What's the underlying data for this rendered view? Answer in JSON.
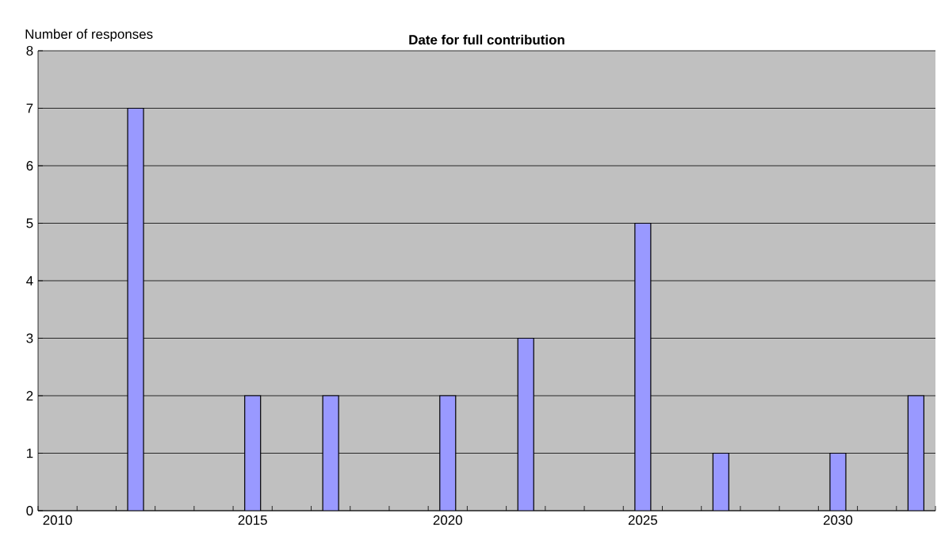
{
  "chart_data": {
    "type": "bar",
    "title": "Date for full contribution",
    "ylabel": "Number of responses",
    "categories": [
      "2010",
      null,
      null,
      null,
      null,
      "2015",
      null,
      null,
      null,
      null,
      "2020",
      null,
      null,
      null,
      null,
      "2025",
      null,
      null,
      null,
      null,
      "2030",
      null,
      null
    ],
    "values": [
      null,
      null,
      7,
      null,
      null,
      2,
      null,
      2,
      null,
      null,
      2,
      null,
      3,
      null,
      null,
      5,
      null,
      1,
      null,
      null,
      1,
      null,
      2
    ],
    "color": "#9999ff",
    "ylim": [
      0,
      8
    ],
    "yticks": [
      0,
      1,
      2,
      3,
      4,
      5,
      6,
      7,
      8
    ],
    "grid": "y"
  }
}
